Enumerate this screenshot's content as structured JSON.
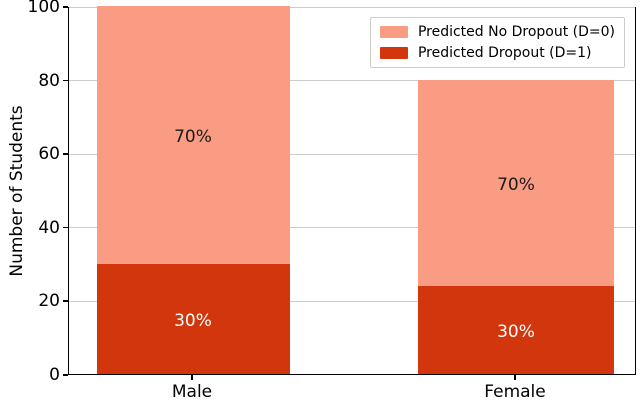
{
  "chart_data": {
    "type": "bar",
    "subtype": "stacked",
    "title": "",
    "ylabel": "Number of Students",
    "xlabel": "",
    "categories": [
      "Male",
      "Female"
    ],
    "series": [
      {
        "name": "Predicted Dropout (D=1)",
        "color": "#d2360d",
        "values": [
          30,
          24
        ],
        "segment_labels": [
          "30%",
          "30%"
        ],
        "label_color": "#ffffff"
      },
      {
        "name": "Predicted No Dropout (D=0)",
        "color": "#fa9c84",
        "values": [
          70,
          56
        ],
        "segment_labels": [
          "70%",
          "70%"
        ],
        "label_color": "#1a1a1a"
      }
    ],
    "bar_totals": [
      100,
      80
    ],
    "yticks": [
      0,
      20,
      40,
      60,
      80,
      100
    ],
    "ylim": [
      0,
      100
    ],
    "grid": "horizontal",
    "grid_color": "#cccccc",
    "legend": {
      "position": "top-right",
      "entries": [
        {
          "label": "Predicted No Dropout (D=0)",
          "color": "#fa9c84"
        },
        {
          "label": "Predicted Dropout (D=1)",
          "color": "#d2360d"
        }
      ]
    }
  }
}
